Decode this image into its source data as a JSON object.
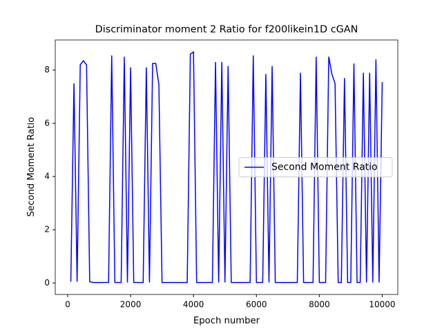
{
  "chart_data": {
    "type": "line",
    "title": "Discriminator moment 2 Ratio for f200likein1D cGAN",
    "xlabel": "Epoch number",
    "ylabel": "Second Moment Ratio",
    "x": [
      100,
      200,
      300,
      400,
      500,
      600,
      700,
      800,
      900,
      1000,
      1100,
      1200,
      1300,
      1400,
      1500,
      1600,
      1700,
      1800,
      1900,
      2000,
      2100,
      2200,
      2300,
      2400,
      2500,
      2600,
      2700,
      2800,
      2900,
      3000,
      3100,
      3200,
      3300,
      3400,
      3500,
      3600,
      3700,
      3800,
      3900,
      4000,
      4100,
      4200,
      4300,
      4400,
      4500,
      4600,
      4700,
      4800,
      4900,
      5000,
      5100,
      5200,
      5300,
      5400,
      5500,
      5600,
      5700,
      5800,
      5900,
      6000,
      6100,
      6200,
      6300,
      6400,
      6500,
      6600,
      6700,
      6800,
      6900,
      7000,
      7100,
      7200,
      7300,
      7400,
      7500,
      7600,
      7700,
      7800,
      7900,
      8000,
      8100,
      8200,
      8300,
      8400,
      8500,
      8600,
      8700,
      8800,
      8900,
      9000,
      9100,
      9200,
      9300,
      9400,
      9500,
      9600,
      9700,
      9800,
      9900,
      10000
    ],
    "series": [
      {
        "name": "Second Moment Ratio",
        "color": "#0000ff",
        "values": [
          0.05,
          7.5,
          0.05,
          8.2,
          8.35,
          8.2,
          0.05,
          0.02,
          0.02,
          0.02,
          0.02,
          0.02,
          0.02,
          8.55,
          0.02,
          0.02,
          0.02,
          8.5,
          0.02,
          8.1,
          0.02,
          0.02,
          0.02,
          0.02,
          8.1,
          0.02,
          8.25,
          8.25,
          7.45,
          0.02,
          0.02,
          0.02,
          0.02,
          0.02,
          0.02,
          0.02,
          0.02,
          0.02,
          8.6,
          8.68,
          0.02,
          0.02,
          0.02,
          0.02,
          0.02,
          0.02,
          8.3,
          0.02,
          8.3,
          0.02,
          8.15,
          0.02,
          0.02,
          0.02,
          0.02,
          0.02,
          0.02,
          0.02,
          8.55,
          0.02,
          0.02,
          0.02,
          7.85,
          0.02,
          8.15,
          0.02,
          0.02,
          0.02,
          0.02,
          0.02,
          0.02,
          0.02,
          0.02,
          7.9,
          0.02,
          0.02,
          0.02,
          0.02,
          8.5,
          0.02,
          0.02,
          0.02,
          8.5,
          7.85,
          7.5,
          0.02,
          0.02,
          7.7,
          0.02,
          0.02,
          8.25,
          0.02,
          0.02,
          7.9,
          0.02,
          7.9,
          0.02,
          8.4,
          0.02,
          7.55
        ]
      }
    ],
    "xlim": [
      -395,
      10495
    ],
    "xticks": [
      0,
      2000,
      4000,
      6000,
      8000,
      10000
    ],
    "ylim": [
      -0.43,
      9.13
    ],
    "yticks": [
      0,
      2,
      4,
      6,
      8
    ],
    "legend": "center right"
  }
}
